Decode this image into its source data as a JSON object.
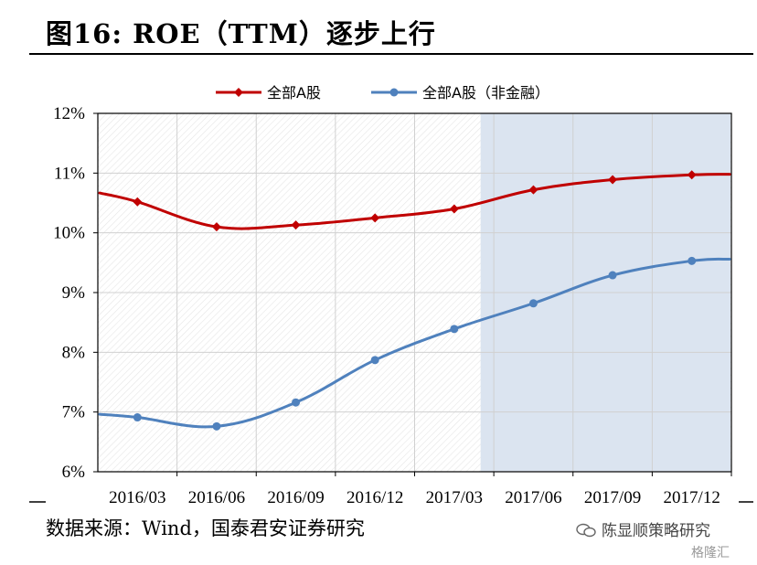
{
  "header": {
    "title": "图16: ROE（TTM）逐步上行"
  },
  "footer": {
    "source": "数据来源：Wind，国泰君安证券研究"
  },
  "watermark": {
    "text": "陈显顺策略研究",
    "brand": "格隆汇"
  },
  "colors": {
    "series1": "#c00000",
    "series2": "#4f81bd",
    "shade": "#dbe4f0",
    "grid": "#d0d0d0"
  },
  "chart_data": {
    "type": "line",
    "title": "",
    "xlabel": "",
    "ylabel": "",
    "categories": [
      "2016/03",
      "2016/06",
      "2016/09",
      "2016/12",
      "2017/03",
      "2017/06",
      "2017/09",
      "2017/12"
    ],
    "ylim": [
      6,
      12
    ],
    "yticks": [
      "6%",
      "7%",
      "8%",
      "9%",
      "10%",
      "11%",
      "12%"
    ],
    "grid": true,
    "legend_position": "top",
    "shaded_region": {
      "from": "2017/04",
      "to": "2017/12"
    },
    "series": [
      {
        "name": "全部A股",
        "color": "#c00000",
        "marker": "diamond",
        "values": [
          10.52,
          10.1,
          10.13,
          10.25,
          10.4,
          10.72,
          10.89,
          10.97
        ]
      },
      {
        "name": "全部A股（非金融）",
        "color": "#4f81bd",
        "marker": "circle",
        "values": [
          6.91,
          6.76,
          7.16,
          7.87,
          8.39,
          8.82,
          9.29,
          9.53
        ]
      }
    ]
  }
}
